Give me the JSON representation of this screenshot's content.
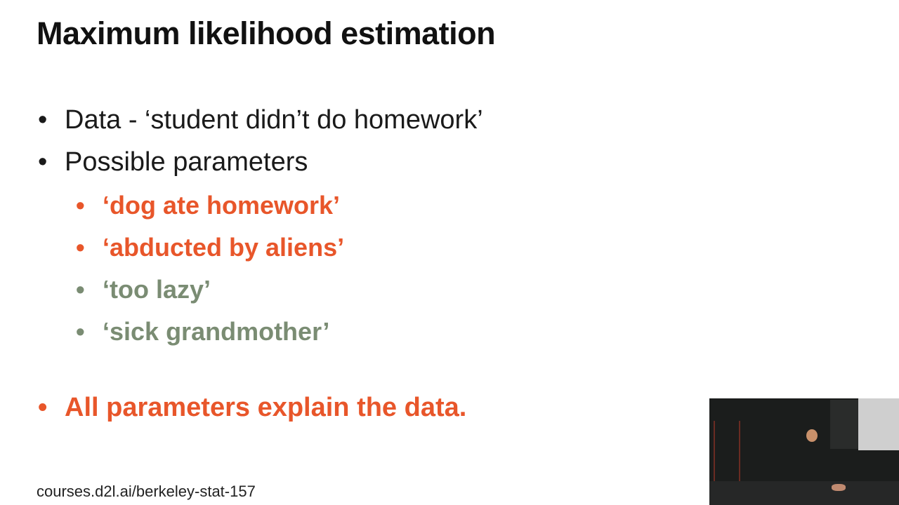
{
  "slide": {
    "title": "Maximum likelihood estimation",
    "bullet_char": "•",
    "bullets": [
      {
        "text": "Data - ‘student didn’t do homework’"
      },
      {
        "text": "Possible parameters"
      }
    ],
    "sub_bullets": [
      {
        "text": "‘dog ate homework’",
        "color": "#e8562a"
      },
      {
        "text": "‘abducted by aliens’",
        "color": "#e8562a"
      },
      {
        "text": "‘too lazy’",
        "color": "#7a8c73"
      },
      {
        "text": "‘sick grandmother’",
        "color": "#7a8c73"
      }
    ],
    "conclusion": "All parameters explain the data.",
    "footer": "courses.d2l.ai/berkeley-stat-157"
  },
  "colors": {
    "accent_orange": "#e8562a",
    "muted_green_gray": "#7a8c73",
    "text_dark": "#111111"
  }
}
